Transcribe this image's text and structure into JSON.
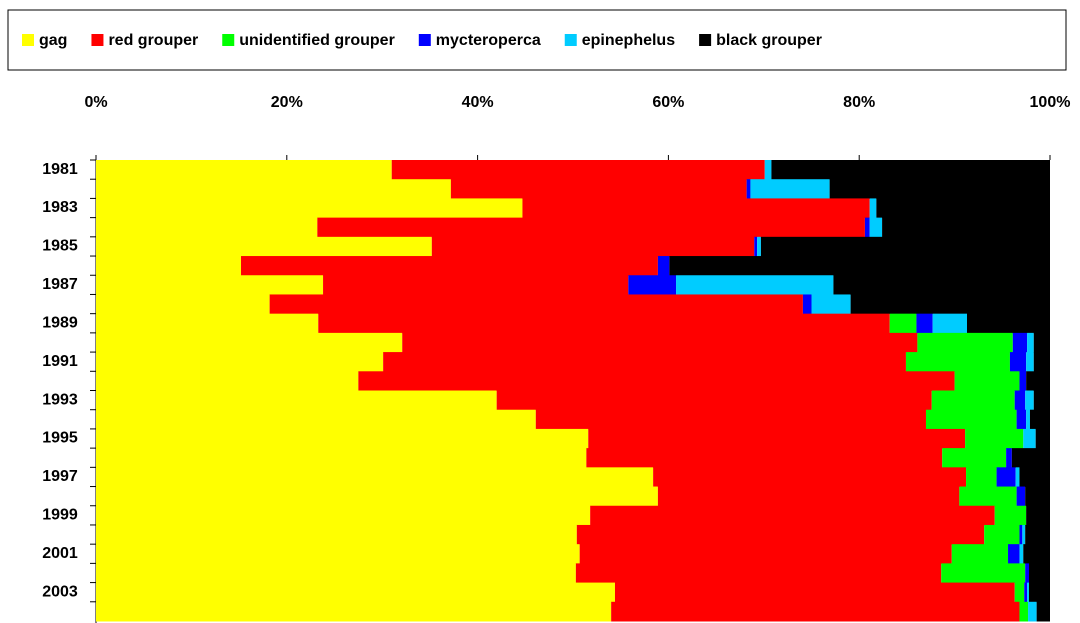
{
  "chart_data": {
    "type": "stacked-bar-horizontal",
    "categories": [
      "1981",
      null,
      "1983",
      null,
      "1985",
      null,
      "1987",
      null,
      "1989",
      null,
      "1991",
      null,
      "1993",
      null,
      "1995",
      null,
      "1997",
      null,
      "1999",
      null,
      "2001",
      null,
      "2003",
      null
    ],
    "series": [
      {
        "name": "gag",
        "color": "#ffff00",
        "values": [
          31.0,
          37.2,
          44.7,
          23.2,
          35.2,
          15.2,
          23.8,
          18.2,
          23.3,
          32.1,
          30.1,
          27.5,
          42.0,
          46.1,
          51.6,
          51.4,
          58.4,
          58.9,
          51.8,
          50.4,
          50.7,
          50.3,
          54.4,
          54.0
        ]
      },
      {
        "name": "red grouper",
        "color": "#ff0000",
        "values": [
          39.1,
          31.0,
          36.4,
          57.4,
          33.8,
          43.7,
          32.0,
          55.9,
          59.9,
          54.0,
          54.8,
          62.5,
          45.6,
          40.9,
          39.5,
          37.3,
          32.8,
          31.6,
          42.4,
          42.7,
          39.0,
          38.3,
          41.9,
          42.8
        ]
      },
      {
        "name": "unidentified grouper",
        "color": "#00ff00",
        "values": [
          0,
          0,
          0,
          0,
          0,
          0,
          0,
          0,
          2.8,
          10.0,
          10.9,
          6.8,
          8.7,
          9.5,
          6.1,
          6.7,
          3.2,
          6.0,
          3.3,
          3.7,
          5.9,
          8.8,
          1.0,
          0.9
        ]
      },
      {
        "name": "mycteroperca",
        "color": "#0000ff",
        "values": [
          0,
          0.4,
          0,
          0.5,
          0.3,
          1.2,
          5.0,
          0.9,
          1.7,
          1.5,
          1.7,
          0.7,
          1.1,
          1.0,
          0,
          0.6,
          2.0,
          0.9,
          0,
          0.3,
          1.2,
          0.4,
          0.3,
          0
        ]
      },
      {
        "name": "epinephelus",
        "color": "#00ccff",
        "values": [
          0.7,
          8.3,
          0.7,
          1.3,
          0.4,
          0,
          16.5,
          4.1,
          3.6,
          0.7,
          0.8,
          0,
          0.9,
          0.4,
          1.3,
          0,
          0.4,
          0,
          0,
          0.3,
          0.4,
          0,
          0.2,
          0.9
        ]
      },
      {
        "name": "black grouper",
        "color": "#000000",
        "values": [
          29.2,
          23.1,
          18.2,
          17.6,
          30.3,
          39.9,
          22.7,
          20.9,
          8.7,
          1.7,
          1.7,
          2.5,
          1.7,
          2.1,
          1.5,
          4.0,
          3.2,
          2.6,
          2.5,
          2.6,
          2.8,
          2.2,
          2.2,
          1.4
        ]
      }
    ],
    "xlim": [
      0,
      100
    ],
    "xticks": [
      {
        "value": 0,
        "label": "0%"
      },
      {
        "value": 20,
        "label": "20%"
      },
      {
        "value": 40,
        "label": "40%"
      },
      {
        "value": 60,
        "label": "60%"
      },
      {
        "value": 80,
        "label": "80%"
      },
      {
        "value": 100,
        "label": "100%"
      }
    ],
    "legend": "top"
  }
}
